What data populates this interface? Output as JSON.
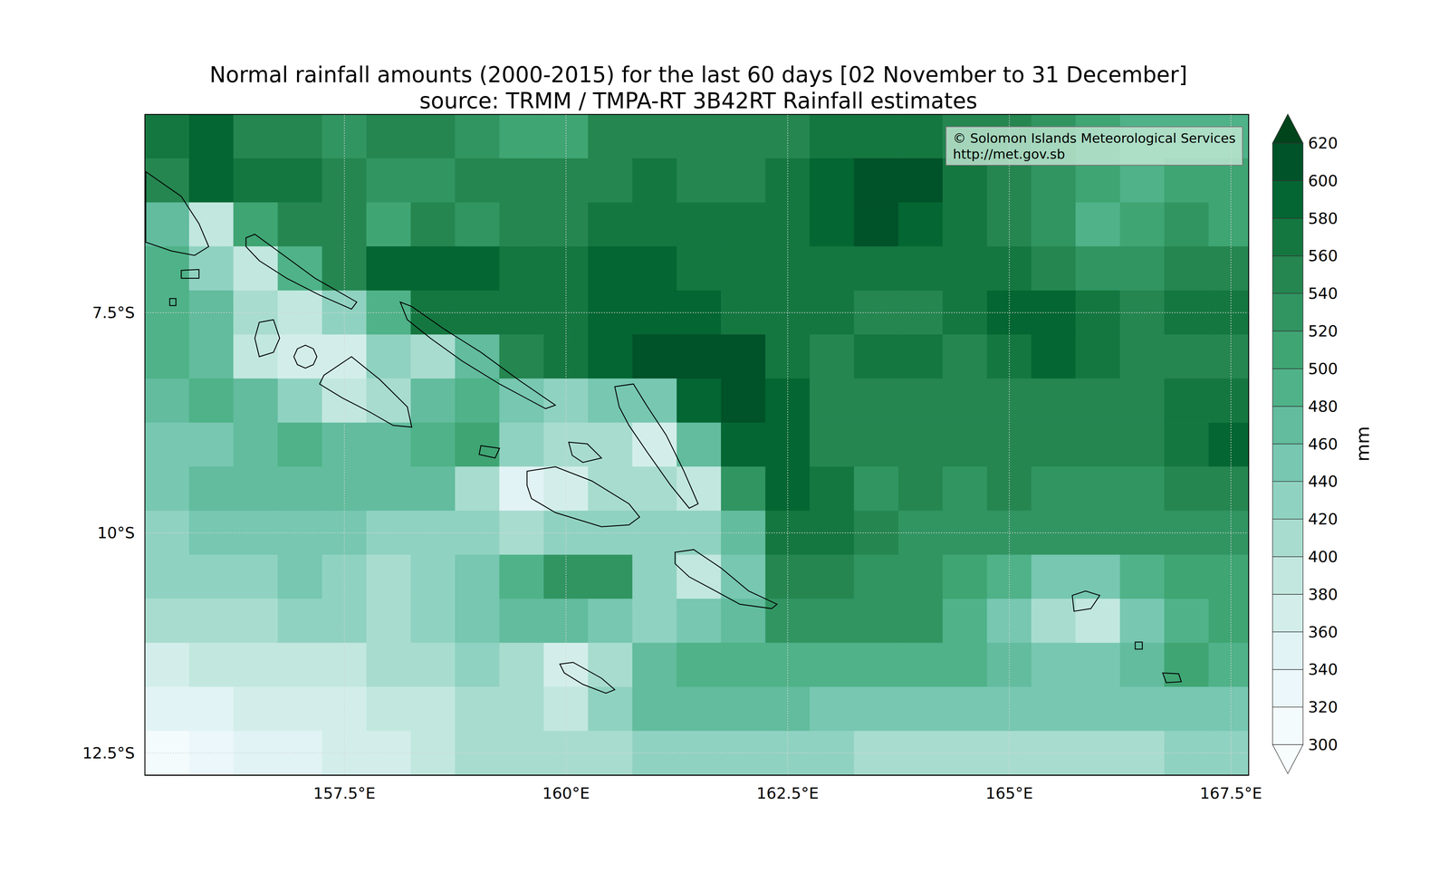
{
  "chart_data": {
    "type": "heatmap",
    "title": "Normal rainfall amounts (2000-2015) for the last 60 days [02 November to 31 December]",
    "subtitle": "source: TRMM / TMPA-RT 3B42RT Rainfall estimates",
    "annotation": [
      "© Solomon Islands Meteorological Services",
      "http://met.gov.sb"
    ],
    "xlim": [
      155.25,
      167.7
    ],
    "ylim": [
      -12.75,
      -5.25
    ],
    "xticks": [
      {
        "value": 157.5,
        "label": "157.5°E"
      },
      {
        "value": 160,
        "label": "160°E"
      },
      {
        "value": 162.5,
        "label": "162.5°E"
      },
      {
        "value": 165,
        "label": "165°E"
      },
      {
        "value": 167.5,
        "label": "167.5°E"
      }
    ],
    "yticks": [
      {
        "value": -12.5,
        "label": "12.5°S"
      },
      {
        "value": -10,
        "label": "10°S"
      },
      {
        "value": -7.5,
        "label": "7.5°S"
      }
    ],
    "grid": true,
    "cells": {
      "lon": [
        155.5,
        156,
        156.5,
        157,
        157.5,
        158,
        158.5,
        159,
        159.5,
        160,
        160.5,
        161,
        161.5,
        162,
        162.5,
        163,
        163.5,
        164,
        164.5,
        165,
        165.5,
        166,
        166.5,
        167,
        167.5
      ],
      "lat": [
        -5.5,
        -6,
        -6.5,
        -7,
        -7.5,
        -8,
        -8.5,
        -9,
        -9.5,
        -10,
        -10.5,
        -11,
        -11.5,
        -12,
        -12.5
      ],
      "values": [
        [
          570,
          590,
          550,
          550,
          530,
          550,
          550,
          530,
          510,
          510,
          550,
          550,
          550,
          550,
          550,
          570,
          570,
          570,
          550,
          550,
          530,
          510,
          490,
          490,
          490
        ],
        [
          550,
          590,
          570,
          570,
          550,
          530,
          530,
          550,
          550,
          550,
          550,
          570,
          550,
          550,
          570,
          590,
          610,
          610,
          570,
          550,
          530,
          510,
          490,
          510,
          510
        ],
        [
          470,
          390,
          510,
          550,
          550,
          510,
          550,
          530,
          550,
          550,
          570,
          570,
          570,
          570,
          570,
          590,
          610,
          590,
          570,
          550,
          530,
          490,
          510,
          530,
          510
        ],
        [
          490,
          430,
          390,
          490,
          550,
          590,
          590,
          590,
          570,
          570,
          590,
          590,
          570,
          570,
          570,
          570,
          570,
          570,
          570,
          570,
          550,
          530,
          530,
          550,
          550
        ],
        [
          490,
          470,
          410,
          390,
          430,
          490,
          570,
          570,
          570,
          570,
          590,
          590,
          590,
          570,
          570,
          570,
          550,
          550,
          570,
          590,
          590,
          570,
          550,
          570,
          570
        ],
        [
          490,
          470,
          390,
          370,
          370,
          430,
          410,
          470,
          550,
          570,
          590,
          610,
          610,
          610,
          570,
          550,
          570,
          570,
          550,
          570,
          590,
          570,
          550,
          550,
          550
        ],
        [
          470,
          490,
          470,
          430,
          390,
          410,
          470,
          490,
          450,
          430,
          450,
          450,
          590,
          610,
          590,
          550,
          550,
          550,
          550,
          550,
          550,
          550,
          550,
          570,
          570
        ],
        [
          450,
          450,
          470,
          490,
          470,
          470,
          490,
          510,
          430,
          410,
          410,
          370,
          470,
          590,
          590,
          550,
          550,
          550,
          550,
          550,
          550,
          550,
          550,
          570,
          590
        ],
        [
          450,
          470,
          470,
          470,
          470,
          470,
          470,
          410,
          350,
          370,
          410,
          410,
          390,
          530,
          590,
          570,
          530,
          550,
          530,
          550,
          530,
          530,
          530,
          550,
          550
        ],
        [
          430,
          450,
          450,
          450,
          450,
          430,
          430,
          430,
          410,
          430,
          430,
          430,
          430,
          470,
          570,
          570,
          550,
          530,
          530,
          530,
          530,
          530,
          530,
          530,
          530
        ],
        [
          430,
          430,
          430,
          450,
          430,
          410,
          430,
          450,
          490,
          530,
          530,
          430,
          390,
          450,
          550,
          550,
          530,
          530,
          510,
          490,
          450,
          450,
          490,
          510,
          510
        ],
        [
          410,
          410,
          410,
          430,
          430,
          410,
          430,
          450,
          470,
          470,
          450,
          430,
          450,
          470,
          530,
          530,
          530,
          530,
          490,
          450,
          410,
          390,
          450,
          490,
          510
        ],
        [
          370,
          390,
          390,
          390,
          390,
          410,
          410,
          430,
          410,
          370,
          410,
          470,
          490,
          490,
          490,
          490,
          490,
          490,
          490,
          470,
          450,
          450,
          470,
          510,
          490
        ],
        [
          350,
          350,
          370,
          370,
          370,
          390,
          390,
          410,
          410,
          390,
          430,
          470,
          470,
          470,
          470,
          450,
          450,
          450,
          450,
          450,
          450,
          450,
          450,
          450,
          450
        ],
        [
          310,
          330,
          350,
          350,
          370,
          370,
          390,
          410,
          410,
          410,
          410,
          430,
          430,
          430,
          430,
          430,
          410,
          410,
          410,
          410,
          410,
          410,
          410,
          430,
          430
        ]
      ]
    },
    "colorbar": {
      "label": "mm",
      "ylim": [
        300,
        620
      ],
      "yticks": [
        300,
        320,
        340,
        360,
        380,
        400,
        420,
        440,
        460,
        480,
        500,
        520,
        540,
        560,
        580,
        600,
        620
      ],
      "colors": [
        "#f4fbfc",
        "#ebf7fa",
        "#e1f3f5",
        "#d3eeea",
        "#c2e7df",
        "#a8dccf",
        "#90d2c1",
        "#77c7b1",
        "#62bc9d",
        "#4fb288",
        "#3fa573",
        "#319562",
        "#258650",
        "#157740",
        "#046632",
        "#005228"
      ],
      "under_color": "#f7fcfd",
      "over_color": "#00441b"
    },
    "coastlines": [
      [
        [
          155.26,
          -5.9
        ],
        [
          155.66,
          -6.18
        ],
        [
          155.86,
          -6.49
        ],
        [
          155.97,
          -6.75
        ],
        [
          155.81,
          -6.85
        ],
        [
          155.55,
          -6.8
        ],
        [
          155.26,
          -6.7
        ]
      ],
      [
        [
          155.66,
          -7.02
        ],
        [
          155.86,
          -7.01
        ],
        [
          155.86,
          -7.11
        ],
        [
          155.66,
          -7.11
        ]
      ],
      [
        [
          155.53,
          -7.34
        ],
        [
          155.6,
          -7.34
        ],
        [
          155.6,
          -7.42
        ],
        [
          155.53,
          -7.42
        ]
      ],
      [
        [
          156.39,
          -6.65
        ],
        [
          156.49,
          -6.61
        ],
        [
          156.75,
          -6.8
        ],
        [
          157.17,
          -7.11
        ],
        [
          157.64,
          -7.38
        ],
        [
          157.58,
          -7.46
        ],
        [
          157.22,
          -7.3
        ],
        [
          156.85,
          -7.11
        ],
        [
          156.54,
          -6.91
        ],
        [
          156.39,
          -6.75
        ]
      ],
      [
        [
          158.13,
          -7.38
        ],
        [
          158.26,
          -7.43
        ],
        [
          158.63,
          -7.69
        ],
        [
          159.04,
          -7.95
        ],
        [
          159.46,
          -8.26
        ],
        [
          159.88,
          -8.55
        ],
        [
          159.77,
          -8.59
        ],
        [
          159.51,
          -8.45
        ],
        [
          159.25,
          -8.31
        ],
        [
          158.83,
          -8.05
        ],
        [
          158.47,
          -7.79
        ],
        [
          158.21,
          -7.58
        ]
      ],
      [
        [
          156.54,
          -7.61
        ],
        [
          156.7,
          -7.58
        ],
        [
          156.77,
          -7.79
        ],
        [
          156.7,
          -7.95
        ],
        [
          156.54,
          -8.0
        ],
        [
          156.49,
          -7.79
        ]
      ],
      [
        [
          157.19,
          -8.0
        ],
        [
          157.15,
          -7.91
        ],
        [
          157.06,
          -7.87
        ],
        [
          156.97,
          -7.91
        ],
        [
          156.93,
          -8.0
        ],
        [
          156.97,
          -8.09
        ],
        [
          157.06,
          -8.13
        ],
        [
          157.15,
          -8.09
        ]
      ],
      [
        [
          157.27,
          -8.21
        ],
        [
          157.58,
          -8.0
        ],
        [
          157.9,
          -8.26
        ],
        [
          158.21,
          -8.57
        ],
        [
          158.26,
          -8.8
        ],
        [
          158.05,
          -8.78
        ],
        [
          157.79,
          -8.63
        ],
        [
          157.48,
          -8.47
        ],
        [
          157.22,
          -8.31
        ]
      ],
      [
        [
          159.04,
          -9.01
        ],
        [
          159.25,
          -9.04
        ],
        [
          159.2,
          -9.15
        ],
        [
          159.02,
          -9.11
        ]
      ],
      [
        [
          160.03,
          -8.97
        ],
        [
          160.24,
          -8.99
        ],
        [
          160.4,
          -9.15
        ],
        [
          160.19,
          -9.2
        ],
        [
          160.07,
          -9.12
        ]
      ],
      [
        [
          159.56,
          -9.3
        ],
        [
          159.88,
          -9.25
        ],
        [
          160.29,
          -9.41
        ],
        [
          160.71,
          -9.67
        ],
        [
          160.83,
          -9.82
        ],
        [
          160.71,
          -9.91
        ],
        [
          160.4,
          -9.93
        ],
        [
          159.88,
          -9.77
        ],
        [
          159.61,
          -9.61
        ],
        [
          159.56,
          -9.46
        ]
      ],
      [
        [
          160.55,
          -8.34
        ],
        [
          160.76,
          -8.31
        ],
        [
          160.92,
          -8.57
        ],
        [
          161.13,
          -8.89
        ],
        [
          161.33,
          -9.3
        ],
        [
          161.49,
          -9.67
        ],
        [
          161.39,
          -9.72
        ],
        [
          161.18,
          -9.46
        ],
        [
          160.92,
          -9.09
        ],
        [
          160.71,
          -8.78
        ],
        [
          160.6,
          -8.57
        ]
      ],
      [
        [
          161.23,
          -10.22
        ],
        [
          161.44,
          -10.19
        ],
        [
          161.75,
          -10.4
        ],
        [
          162.06,
          -10.66
        ],
        [
          162.38,
          -10.81
        ],
        [
          162.32,
          -10.86
        ],
        [
          161.96,
          -10.81
        ],
        [
          161.65,
          -10.64
        ],
        [
          161.39,
          -10.5
        ],
        [
          161.23,
          -10.35
        ]
      ],
      [
        [
          159.93,
          -11.49
        ],
        [
          160.08,
          -11.47
        ],
        [
          160.4,
          -11.65
        ],
        [
          160.55,
          -11.78
        ],
        [
          160.45,
          -11.82
        ],
        [
          160.19,
          -11.72
        ],
        [
          159.98,
          -11.59
        ]
      ],
      [
        [
          165.71,
          -10.71
        ],
        [
          165.86,
          -10.66
        ],
        [
          166.02,
          -10.71
        ],
        [
          165.92,
          -10.86
        ],
        [
          165.73,
          -10.89
        ]
      ],
      [
        [
          166.42,
          -11.24
        ],
        [
          166.5,
          -11.24
        ],
        [
          166.5,
          -11.32
        ],
        [
          166.42,
          -11.32
        ]
      ],
      [
        [
          166.73,
          -11.59
        ],
        [
          166.91,
          -11.6
        ],
        [
          166.94,
          -11.69
        ],
        [
          166.77,
          -11.7
        ]
      ]
    ]
  }
}
